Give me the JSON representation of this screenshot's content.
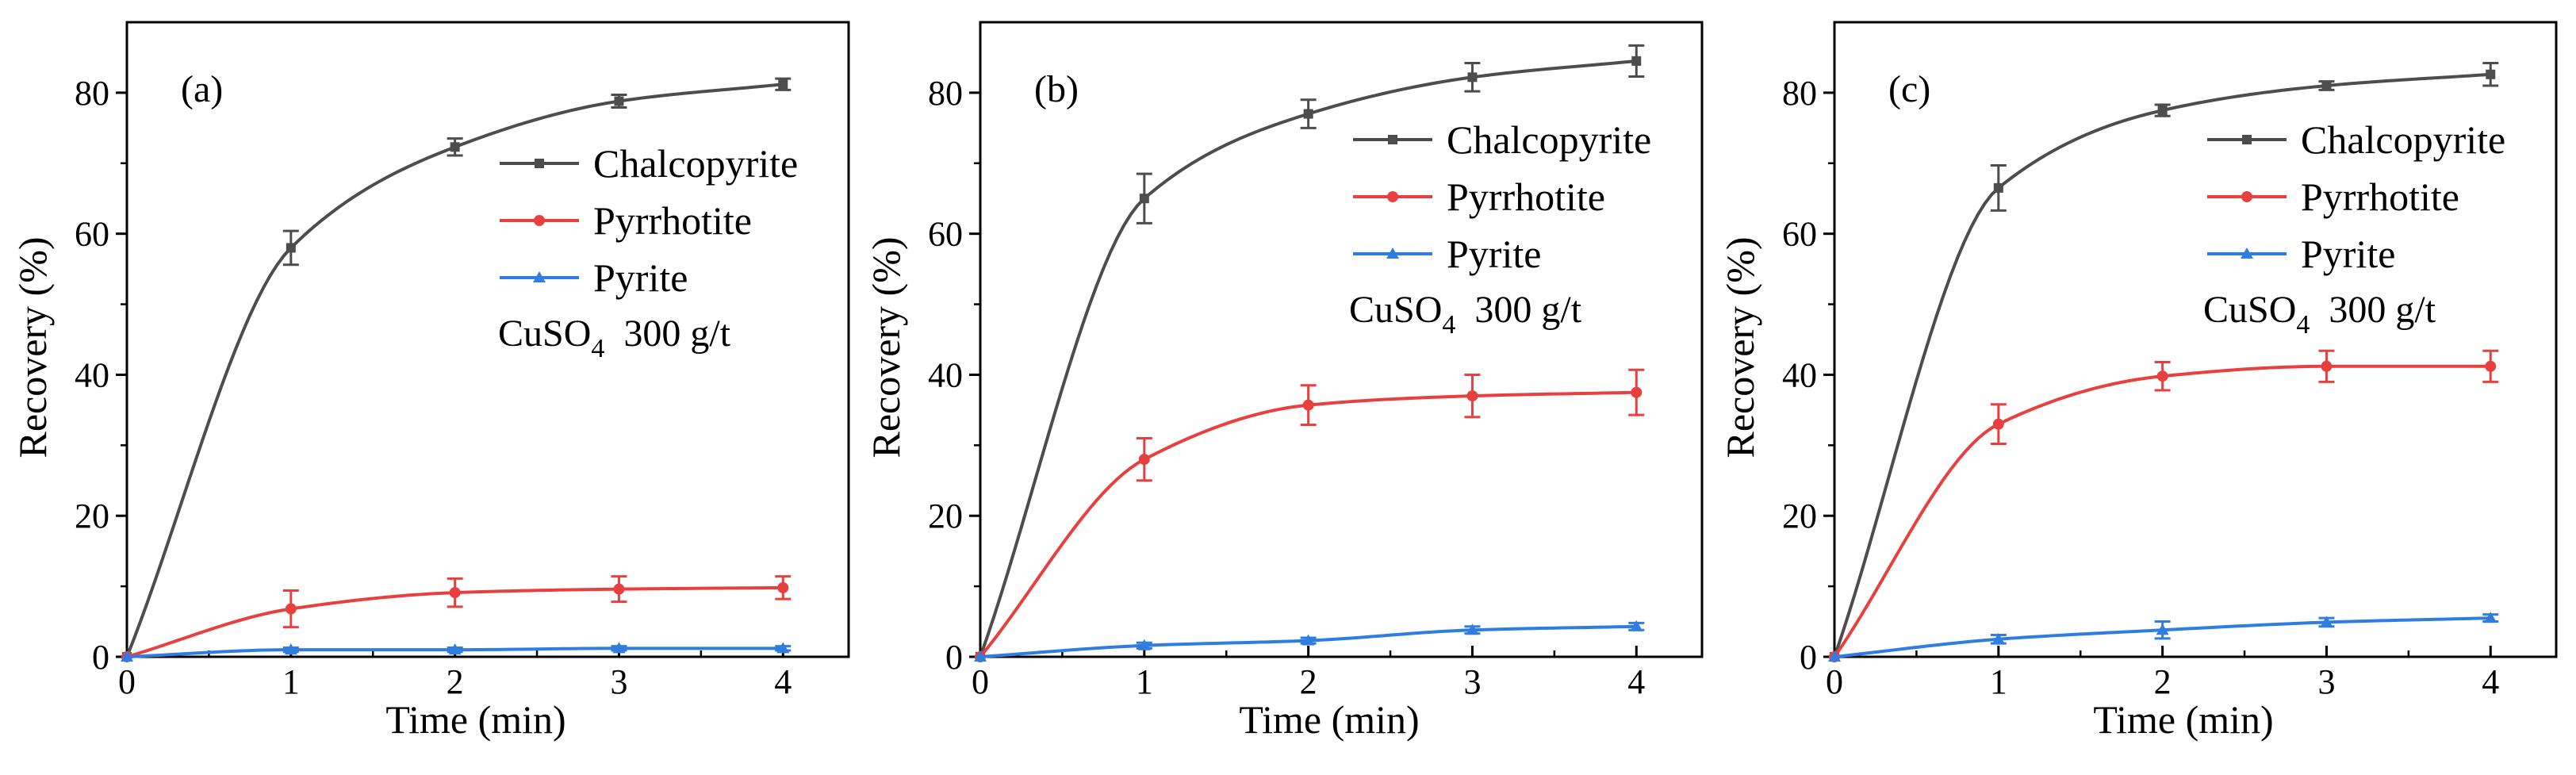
{
  "figure": {
    "colors": {
      "Chalcopyrite": "#4d4d4d",
      "Pyrrhotite": "#e8403f",
      "Pyrite": "#2f7de1",
      "axis": "#000000"
    }
  },
  "chart_data": [
    {
      "type": "line",
      "panel_label": "(a)",
      "xlabel": "Time (min)",
      "ylabel": "Recovery (%)",
      "xlim": [
        0,
        4.4
      ],
      "ylim": [
        0,
        90
      ],
      "xticks": [
        0,
        1,
        2,
        3,
        4
      ],
      "yticks": [
        0,
        20,
        40,
        60,
        80
      ],
      "x": [
        0,
        1,
        2,
        3,
        4
      ],
      "legend_position": "right",
      "condition": {
        "reagent": "CuSO",
        "subscript": "4",
        "dose": "300 g/t"
      },
      "series": [
        {
          "name": "Chalcopyrite",
          "values": [
            0,
            58.0,
            72.3,
            78.8,
            81.2
          ],
          "errors": [
            0,
            2.4,
            1.2,
            0.9,
            0.8
          ],
          "marker": "square"
        },
        {
          "name": "Pyrrhotite",
          "values": [
            0,
            6.8,
            9.1,
            9.6,
            9.8
          ],
          "errors": [
            0,
            2.6,
            2.0,
            1.8,
            1.6
          ],
          "marker": "circle"
        },
        {
          "name": "Pyrite",
          "values": [
            0,
            1.0,
            1.0,
            1.2,
            1.2
          ],
          "errors": [
            0,
            0.3,
            0.3,
            0.3,
            0.3
          ],
          "marker": "triangle"
        }
      ]
    },
    {
      "type": "line",
      "panel_label": "(b)",
      "xlabel": "Time (min)",
      "ylabel": "Recovery (%)",
      "xlim": [
        0,
        4.4
      ],
      "ylim": [
        0,
        90
      ],
      "xticks": [
        0,
        1,
        2,
        3,
        4
      ],
      "yticks": [
        0,
        20,
        40,
        60,
        80
      ],
      "x": [
        0,
        1,
        2,
        3,
        4
      ],
      "legend_position": "right",
      "condition": {
        "reagent": "CuSO",
        "subscript": "4",
        "dose": "300 g/t"
      },
      "series": [
        {
          "name": "Chalcopyrite",
          "values": [
            0,
            65.0,
            77.0,
            82.2,
            84.5
          ],
          "errors": [
            0,
            3.5,
            2.0,
            2.0,
            2.2
          ],
          "marker": "square"
        },
        {
          "name": "Pyrrhotite",
          "values": [
            0,
            28.0,
            35.7,
            37.0,
            37.5
          ],
          "errors": [
            0,
            3.0,
            2.8,
            3.0,
            3.2
          ],
          "marker": "circle"
        },
        {
          "name": "Pyrite",
          "values": [
            0,
            1.6,
            2.3,
            3.8,
            4.3
          ],
          "errors": [
            0,
            0.4,
            0.4,
            0.5,
            0.5
          ],
          "marker": "triangle"
        }
      ]
    },
    {
      "type": "line",
      "panel_label": "(c)",
      "xlabel": "Time (min)",
      "ylabel": "Recovery (%)",
      "xlim": [
        0,
        4.4
      ],
      "ylim": [
        0,
        90
      ],
      "xticks": [
        0,
        1,
        2,
        3,
        4
      ],
      "yticks": [
        0,
        20,
        40,
        60,
        80
      ],
      "x": [
        0,
        1,
        2,
        3,
        4
      ],
      "legend_position": "right",
      "condition": {
        "reagent": "CuSO",
        "subscript": "4",
        "dose": "300 g/t"
      },
      "series": [
        {
          "name": "Chalcopyrite",
          "values": [
            0,
            66.5,
            77.5,
            81.0,
            82.6
          ],
          "errors": [
            0,
            3.2,
            0.8,
            0.6,
            1.6
          ],
          "marker": "square"
        },
        {
          "name": "Pyrrhotite",
          "values": [
            0,
            33.0,
            39.8,
            41.2,
            41.2
          ],
          "errors": [
            0,
            2.8,
            2.0,
            2.2,
            2.2
          ],
          "marker": "circle"
        },
        {
          "name": "Pyrite",
          "values": [
            0,
            2.5,
            3.8,
            4.9,
            5.5
          ],
          "errors": [
            0,
            0.6,
            1.2,
            0.6,
            0.5
          ],
          "marker": "triangle"
        }
      ]
    }
  ]
}
